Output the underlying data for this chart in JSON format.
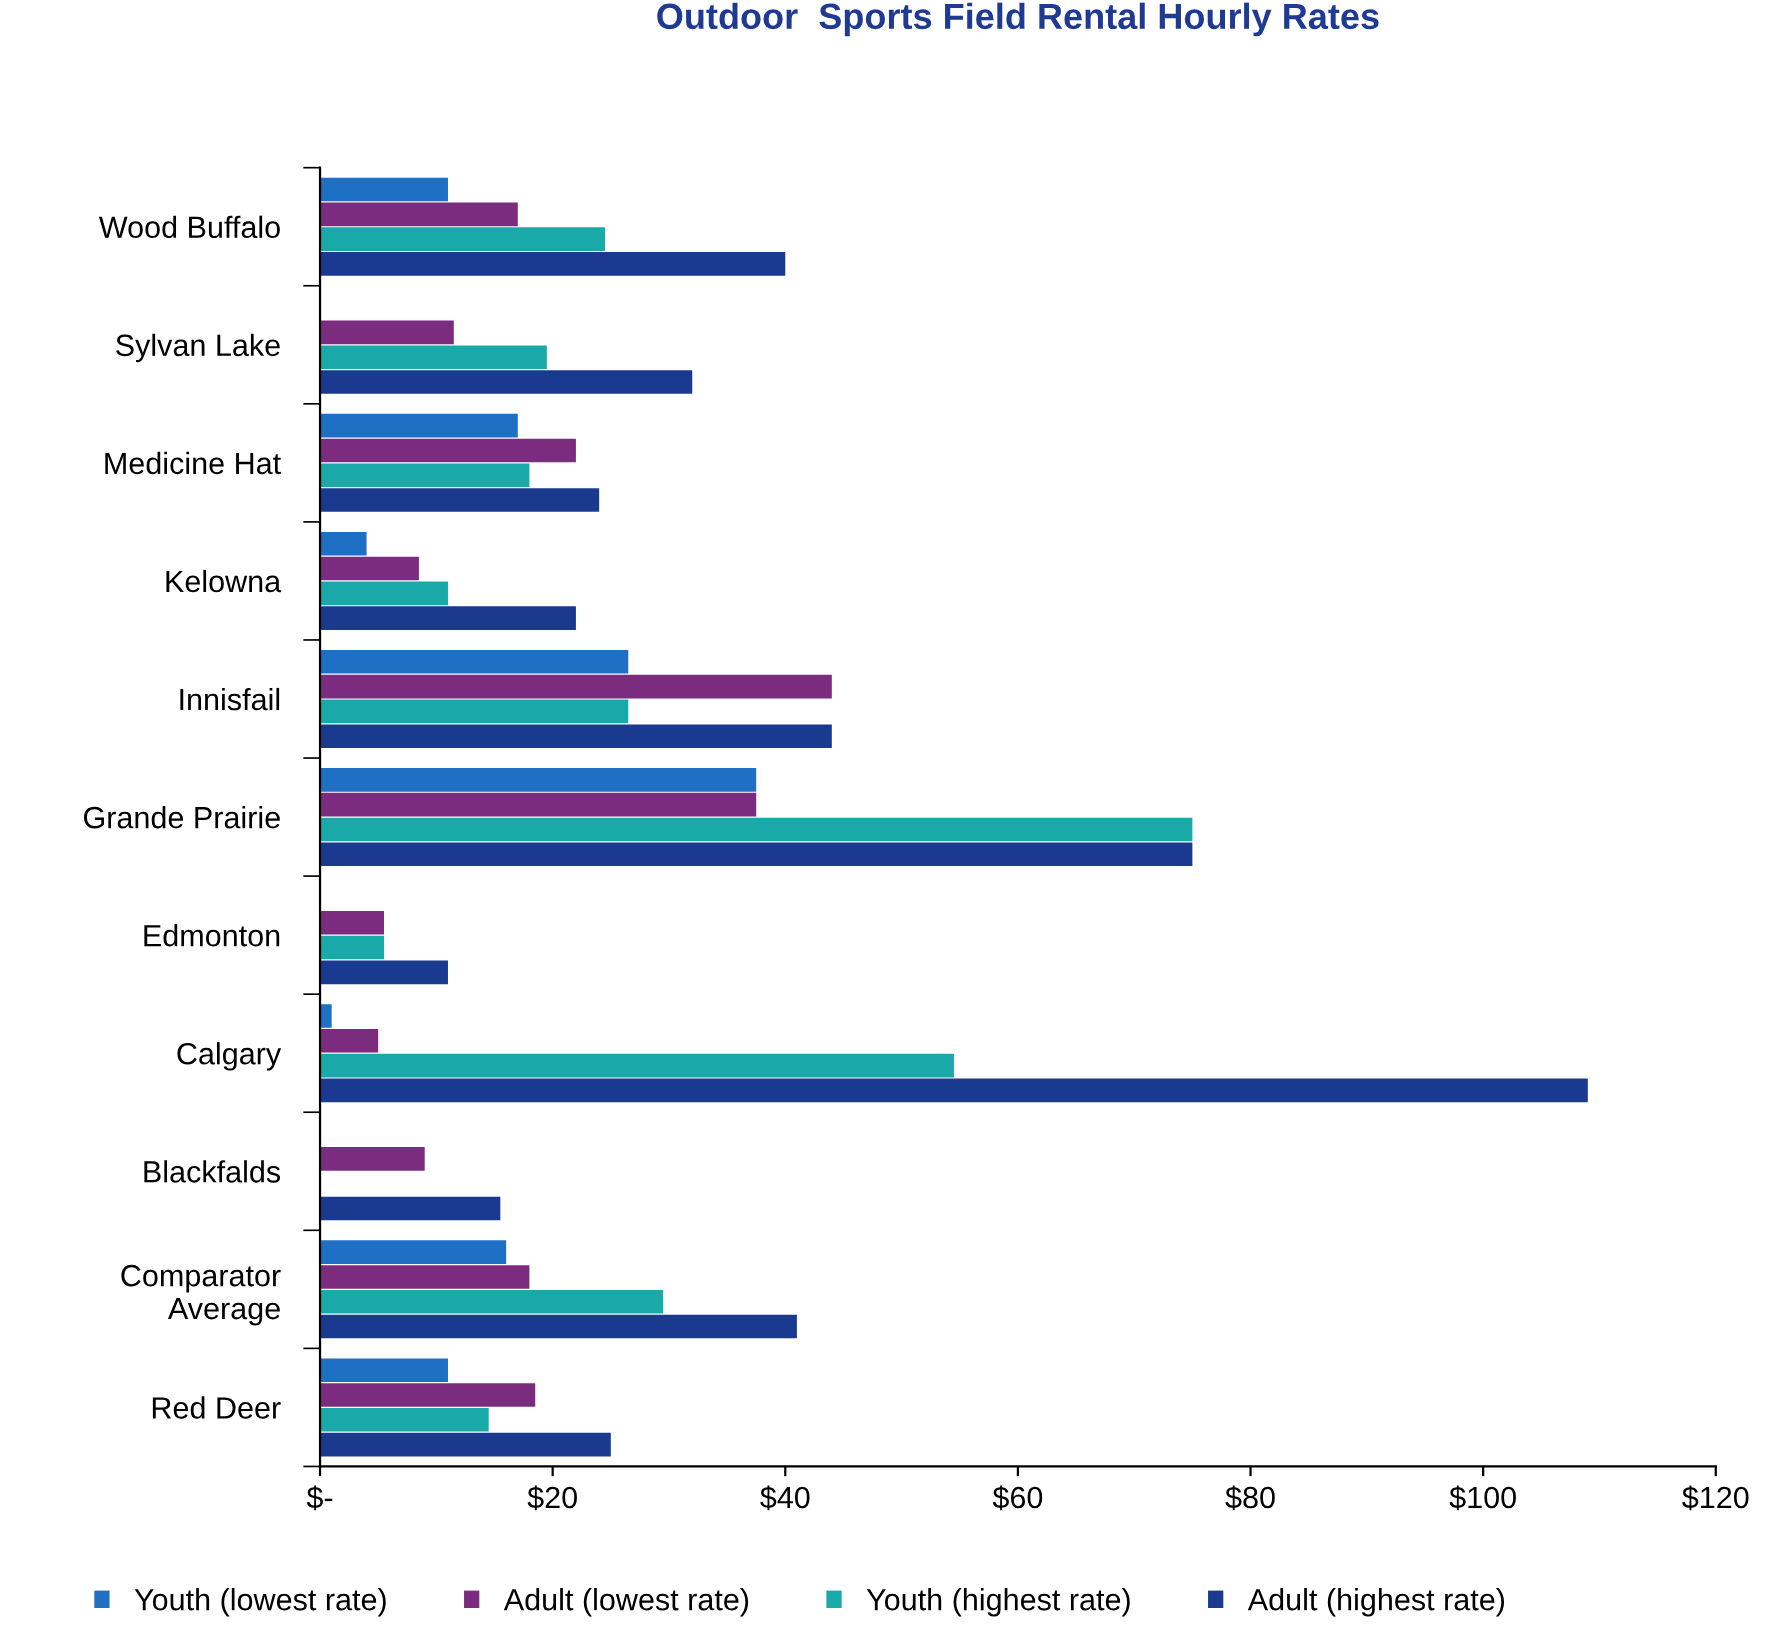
{
  "chart_data": {
    "type": "bar",
    "orientation": "horizontal",
    "title": "Outdoor  Sports Field Rental Hourly Rates",
    "categories": [
      "Wood Buffalo",
      "Sylvan Lake",
      "Medicine Hat",
      "Kelowna",
      "Innisfail",
      "Grande Prairie",
      "Edmonton",
      "Calgary",
      "Blackfalds",
      "Comparator\nAverage",
      "Red Deer"
    ],
    "series": [
      {
        "name": "Youth (lowest rate)",
        "color": "#1f6fc4",
        "values": [
          11,
          null,
          17,
          4,
          26.5,
          37.5,
          null,
          1,
          null,
          16,
          11
        ]
      },
      {
        "name": "Adult (lowest rate)",
        "color": "#7b2c7f",
        "values": [
          17,
          11.5,
          22,
          8.5,
          44,
          37.5,
          5.5,
          5,
          9,
          18,
          18.5
        ]
      },
      {
        "name": "Youth (highest rate)",
        "color": "#1aa9a9",
        "values": [
          24.5,
          19.5,
          18,
          11,
          26.5,
          75,
          5.5,
          54.5,
          null,
          29.5,
          14.5
        ]
      },
      {
        "name": "Adult (highest rate)",
        "color": "#1a3a8f",
        "values": [
          40,
          32,
          24,
          22,
          44,
          75,
          11,
          109,
          15.5,
          41,
          25
        ]
      }
    ],
    "xlim": [
      0,
      120
    ],
    "xticks": [
      {
        "value": 0,
        "label": "$-"
      },
      {
        "value": 20,
        "label": "$20"
      },
      {
        "value": 40,
        "label": "$40"
      },
      {
        "value": 60,
        "label": "$60"
      },
      {
        "value": 80,
        "label": "$80"
      },
      {
        "value": 100,
        "label": "$100"
      },
      {
        "value": 120,
        "label": "$120"
      }
    ],
    "grid": false,
    "legend": "bottom"
  }
}
